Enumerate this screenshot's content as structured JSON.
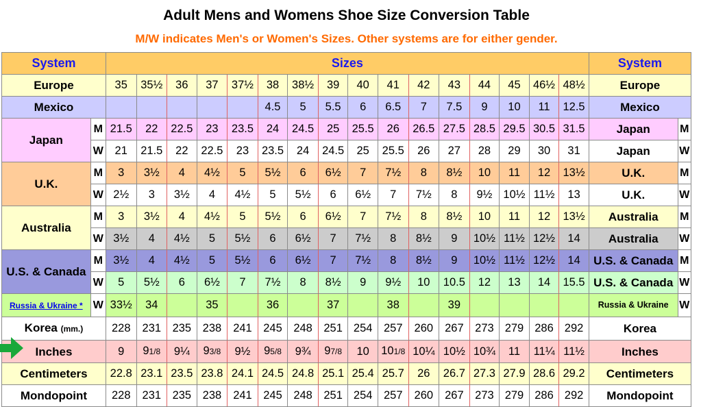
{
  "title": "Adult Mens and Womens Shoe Size Conversion Table",
  "subtitle": "M/W indicates Men's or Women's Sizes. Other systems are for either gender.",
  "header": {
    "system_left": "System",
    "sizes": "Sizes",
    "system_right": "System"
  },
  "colors": {
    "header": "#ffcc66",
    "europe": "#ffffcc",
    "mexico": "#ccccff",
    "japan": "#ffccff",
    "uk": "#ffcc99",
    "australia_m": "#ffffcc",
    "australia_w": "#cccccc",
    "us_m": "#9999dd",
    "us_w": "#ccffcc",
    "russia": "#ccff99",
    "inches": "#ffcccc",
    "centimeters": "#ffffcc",
    "red_line": "#e06060",
    "title_orange": "#ff6a00",
    "header_blue": "#1a1aee",
    "arrow_green": "#1aa83a"
  },
  "arrow_icon": "right-arrow-icon",
  "rows": [
    {
      "label": "Europe",
      "label_right": "Europe",
      "mw": "",
      "values": [
        "35",
        "35½",
        "36",
        "37",
        "37½",
        "38",
        "38½",
        "39",
        "40",
        "41",
        "42",
        "43",
        "44",
        "45",
        "46½",
        "48½"
      ]
    },
    {
      "label": "Mexico",
      "label_right": "Mexico",
      "mw": "",
      "values": [
        "",
        "",
        "",
        "",
        "",
        "4.5",
        "5",
        "5.5",
        "6",
        "6.5",
        "7",
        "7.5",
        "9",
        "10",
        "11",
        "12.5"
      ]
    },
    {
      "label": "Japan",
      "label_right": "Japan",
      "mw": "M",
      "values": [
        "21.5",
        "22",
        "22.5",
        "23",
        "23.5",
        "24",
        "24.5",
        "25",
        "25.5",
        "26",
        "26.5",
        "27.5",
        "28.5",
        "29.5",
        "30.5",
        "31.5"
      ]
    },
    {
      "label": "Japan",
      "label_right": "Japan",
      "mw": "W",
      "values": [
        "21",
        "21.5",
        "22",
        "22.5",
        "23",
        "23.5",
        "24",
        "24.5",
        "25",
        "25.5",
        "26",
        "27",
        "28",
        "29",
        "30",
        "31"
      ]
    },
    {
      "label": "U.K.",
      "label_right": "U.K.",
      "mw": "M",
      "values": [
        "3",
        "3½",
        "4",
        "4½",
        "5",
        "5½",
        "6",
        "6½",
        "7",
        "7½",
        "8",
        "8½",
        "10",
        "11",
        "12",
        "13½"
      ]
    },
    {
      "label": "U.K.",
      "label_right": "U.K.",
      "mw": "W",
      "values": [
        "2½",
        "3",
        "3½",
        "4",
        "4½",
        "5",
        "5½",
        "6",
        "6½",
        "7",
        "7½",
        "8",
        "9½",
        "10½",
        "11½",
        "13"
      ]
    },
    {
      "label": "Australia",
      "label_right": "Australia",
      "mw": "M",
      "values": [
        "3",
        "3½",
        "4",
        "4½",
        "5",
        "5½",
        "6",
        "6½",
        "7",
        "7½",
        "8",
        "8½",
        "10",
        "11",
        "12",
        "13½"
      ]
    },
    {
      "label": "Australia",
      "label_right": "Australia",
      "mw": "W",
      "values": [
        "3½",
        "4",
        "4½",
        "5",
        "5½",
        "6",
        "6½",
        "7",
        "7½",
        "8",
        "8½",
        "9",
        "10½",
        "11½",
        "12½",
        "14"
      ]
    },
    {
      "label": "U.S. & Canada",
      "label_right": "U.S. & Canada",
      "mw": "M",
      "values": [
        "3½",
        "4",
        "4½",
        "5",
        "5½",
        "6",
        "6½",
        "7",
        "7½",
        "8",
        "8½",
        "9",
        "10½",
        "11½",
        "12½",
        "14"
      ]
    },
    {
      "label": "U.S. & Canada",
      "label_right": "U.S. & Canada",
      "mw": "W",
      "values": [
        "5",
        "5½",
        "6",
        "6½",
        "7",
        "7½",
        "8",
        "8½",
        "9",
        "9½",
        "10",
        "10.5",
        "12",
        "13",
        "14",
        "15.5"
      ]
    },
    {
      "label": "Russia & Ukraine *",
      "label_right": "Russia & Ukraine",
      "mw": "W",
      "values": [
        "33½",
        "34",
        "",
        "35",
        "",
        "36",
        "",
        "37",
        "",
        "38",
        "",
        "39",
        "",
        "",
        "",
        ""
      ]
    },
    {
      "label": "Korea",
      "label_unit": "(mm.)",
      "label_right": "Korea",
      "mw": "",
      "values": [
        "228",
        "231",
        "235",
        "238",
        "241",
        "245",
        "248",
        "251",
        "254",
        "257",
        "260",
        "267",
        "273",
        "279",
        "286",
        "292"
      ]
    },
    {
      "label": "Inches",
      "label_right": "Inches",
      "mw": "",
      "values": [
        "9",
        "9 1/8",
        "9¼",
        "9 3/8",
        "9½",
        "9 5/8",
        "9¾",
        "9 7/8",
        "10",
        "10 1/8",
        "10¼",
        "10½",
        "10¾",
        "11",
        "11¼",
        "11½"
      ]
    },
    {
      "label": "Centimeters",
      "label_right": "Centimeters",
      "mw": "",
      "values": [
        "22.8",
        "23.1",
        "23.5",
        "23.8",
        "24.1",
        "24.5",
        "24.8",
        "25.1",
        "25.4",
        "25.7",
        "26",
        "26.7",
        "27.3",
        "27.9",
        "28.6",
        "29.2"
      ]
    },
    {
      "label": "Mondopoint",
      "label_right": "Mondopoint",
      "mw": "",
      "values": [
        "228",
        "231",
        "235",
        "238",
        "241",
        "245",
        "248",
        "251",
        "254",
        "257",
        "260",
        "267",
        "273",
        "279",
        "286",
        "292"
      ]
    }
  ]
}
